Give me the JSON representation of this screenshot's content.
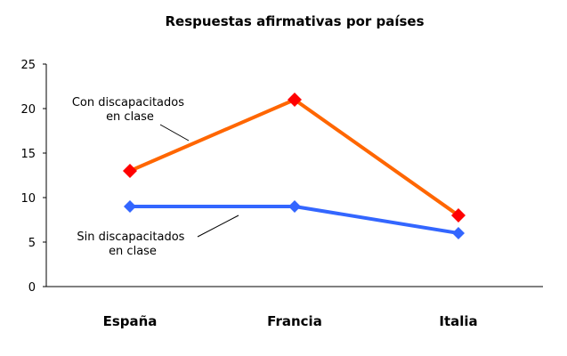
{
  "chart_data": {
    "type": "line",
    "title": "Respuestas afirmativas por países",
    "categories": [
      "España",
      "Francia",
      "Italia"
    ],
    "ylim": [
      0,
      25
    ],
    "yticks": [
      0,
      5,
      10,
      15,
      20,
      25
    ],
    "grid": false,
    "legend": "none",
    "series": [
      {
        "name": "Con discapacitados en clase",
        "label_lines": [
          "Con discapacitados",
          "en clase"
        ],
        "values": [
          13,
          21,
          8
        ],
        "line_color": "#ff6600",
        "marker_color": "#ff0000",
        "marker": "diamond"
      },
      {
        "name": "Sin discapacitados en clase",
        "label_lines": [
          "Sin discapacitados",
          "en clase"
        ],
        "values": [
          9,
          9,
          6
        ],
        "line_color": "#3366ff",
        "marker_color": "#3366ff",
        "marker": "diamond"
      }
    ]
  }
}
